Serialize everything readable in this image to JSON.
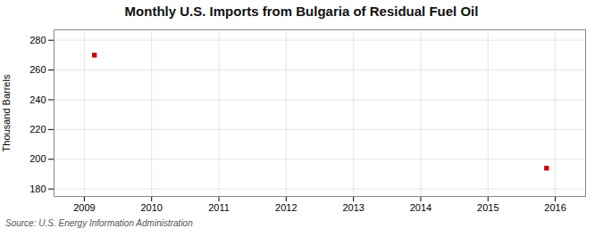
{
  "chart_data": {
    "type": "scatter",
    "title": "Monthly U.S. Imports from Bulgaria of Residual Fuel Oil",
    "ylabel": "Thousand Barrels",
    "source": "Source: U.S. Energy Information Administration",
    "x": [
      2009.15,
      2015.87
    ],
    "values": [
      270,
      194
    ],
    "color": "#CC0000",
    "marker": "square",
    "xlim": [
      2008.55,
      2016.45
    ],
    "ylim": [
      175,
      287
    ],
    "xticks": [
      2009,
      2010,
      2011,
      2012,
      2013,
      2014,
      2015,
      2016
    ],
    "yticks": [
      180,
      200,
      220,
      240,
      260,
      280
    ],
    "grid": true
  }
}
